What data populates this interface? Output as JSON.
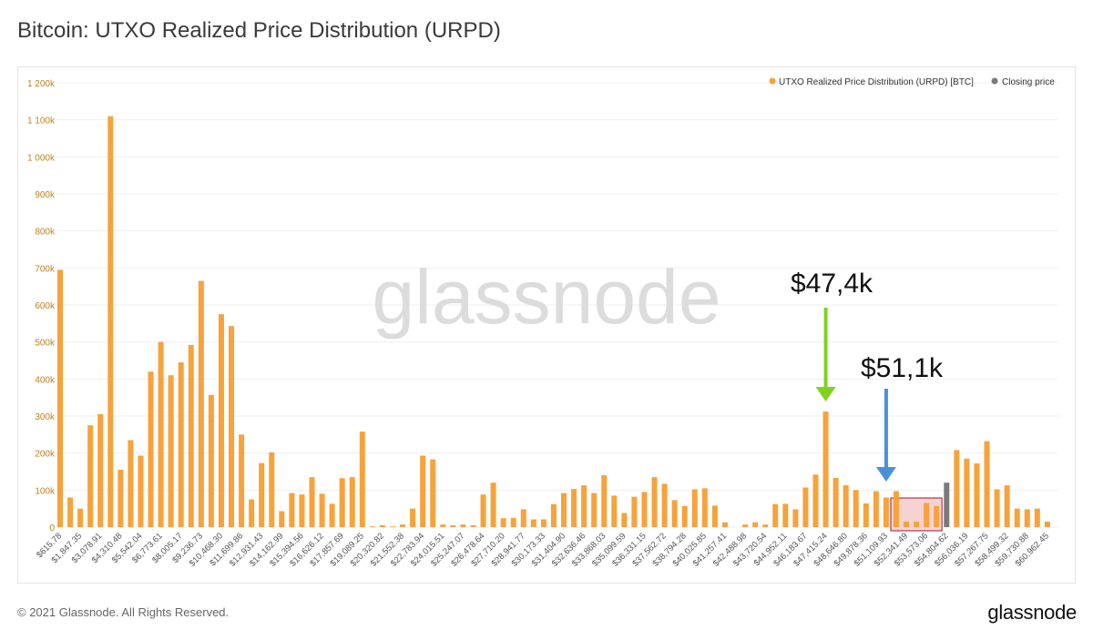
{
  "page": {
    "title": "Bitcoin: UTXO Realized Price Distribution (URPD)",
    "footer": "© 2021 Glassnode. All Rights Reserved.",
    "brand": "glassnode",
    "watermark": "glassnode"
  },
  "colors": {
    "bar": "#f7a23b",
    "closing": "#7a7a7a",
    "green_arrow": "#7ed321",
    "blue_arrow": "#4a90d9",
    "highlight": "#f6d2d2",
    "highlight_border": "#b1384a"
  },
  "chart_data": {
    "type": "bar",
    "title": "Bitcoin: UTXO Realized Price Distribution (URPD)",
    "ylim": [
      0,
      1200000
    ],
    "y_ticks": [
      {
        "value": 0,
        "label": "0"
      },
      {
        "value": 100000,
        "label": "100k"
      },
      {
        "value": 200000,
        "label": "200k"
      },
      {
        "value": 300000,
        "label": "300k"
      },
      {
        "value": 400000,
        "label": "400k"
      },
      {
        "value": 500000,
        "label": "500k"
      },
      {
        "value": 600000,
        "label": "600k"
      },
      {
        "value": 700000,
        "label": "700k"
      },
      {
        "value": 800000,
        "label": "800k"
      },
      {
        "value": 900000,
        "label": "900k"
      },
      {
        "value": 1000000,
        "label": "1 000k"
      },
      {
        "value": 1100000,
        "label": "1 100k"
      },
      {
        "value": 1200000,
        "label": "1 200k"
      }
    ],
    "x_tick_labels": [
      "$615.78",
      "$1,847.35",
      "$3,078.91",
      "$4,310.48",
      "$5,542.04",
      "$6,773.61",
      "$8,005.17",
      "$9,236.73",
      "$10,468.30",
      "$11,699.86",
      "$12,931.43",
      "$14,162.99",
      "$15,394.56",
      "$16,626.12",
      "$17,857.69",
      "$19,089.25",
      "$20,320.82",
      "$21,552.38",
      "$22,783.94",
      "$24,015.51",
      "$25,247.07",
      "$26,478.64",
      "$27,710.20",
      "$28,941.77",
      "$30,173.33",
      "$31,404.90",
      "$32,636.46",
      "$33,868.03",
      "$35,099.59",
      "$36,331.15",
      "$37,562.72",
      "$38,794.28",
      "$40,025.85",
      "$41,257.41",
      "$42,488.98",
      "$43,720.54",
      "$44,952.11",
      "$46,183.67",
      "$47,415.24",
      "$48,646.80",
      "$49,878.36",
      "$51,109.93",
      "$52,341.49",
      "$53,573.06",
      "$54,804.62",
      "$56,036.19",
      "$57,267.75",
      "$58,499.32",
      "$59,730.88",
      "$60,962.45"
    ],
    "x_tick_every": 2,
    "legend_position": "top-right",
    "series": [
      {
        "name": "UTXO Realized Price Distribution (URPD) [BTC]",
        "values": [
          695000,
          80000,
          50000,
          275000,
          305000,
          1110000,
          155000,
          235000,
          193000,
          420000,
          500000,
          410000,
          445000,
          492000,
          665000,
          357000,
          575000,
          543000,
          250000,
          75000,
          173000,
          202000,
          43000,
          92000,
          88000,
          135000,
          90000,
          63000,
          132000,
          135000,
          258000,
          2000,
          5000,
          2000,
          7000,
          50000,
          193000,
          183000,
          7000,
          5000,
          7000,
          5000,
          88000,
          120000,
          24000,
          25000,
          48000,
          21000,
          21000,
          62000,
          92000,
          103000,
          113000,
          92000,
          140000,
          85000,
          38000,
          82000,
          95000,
          135000,
          117000,
          73000,
          57000,
          102000,
          105000,
          58000,
          13000,
          0,
          7000,
          13000,
          7000,
          62000,
          63000,
          48000,
          107000,
          142000,
          312000,
          133000,
          113000,
          100000,
          64000,
          97000,
          80000,
          97000,
          15000,
          15000,
          65000,
          57000,
          0,
          208000,
          185000,
          172000,
          232000,
          102000,
          113000,
          50000,
          48000,
          50000,
          15000
        ]
      },
      {
        "name": "Closing price",
        "bar_index": 88,
        "value": 120000
      }
    ]
  },
  "annotations": {
    "green": {
      "label": "$47,4k",
      "bar_index": 76
    },
    "blue": {
      "label": "$51,1k",
      "bar_index": 82
    },
    "highlight_range": [
      83,
      87
    ]
  }
}
